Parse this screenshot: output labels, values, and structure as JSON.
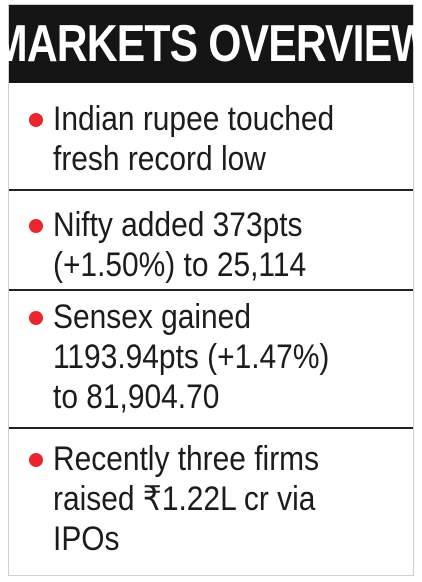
{
  "header": {
    "title": "MARKETS OVERVIEW"
  },
  "bullets": [
    {
      "text": "Indian rupee touched\nfresh record low"
    },
    {
      "text": "Nifty added 373pts\n(+1.50%) to 25,114"
    },
    {
      "text": "Sensex gained\n1193.94pts (+1.47%)\nto 81,904.70"
    },
    {
      "text": "Recently three firms\nraised ₹1.22L cr via\nIPOs"
    }
  ],
  "colors": {
    "header_bg": "#151515",
    "header_text": "#ffffff",
    "bullet_dot": "#e8262b",
    "text": "#1c1c1c",
    "divider": "#222222"
  }
}
